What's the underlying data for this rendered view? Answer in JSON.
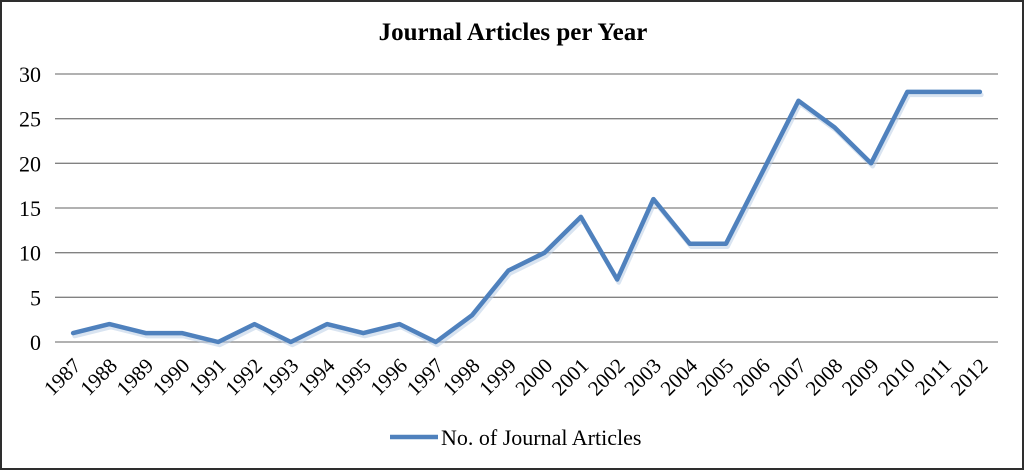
{
  "window": {
    "background_color": "#ffffff",
    "border_color": "#2e2e2e"
  },
  "chart_data": {
    "type": "line",
    "title": "Journal Articles per Year",
    "categories": [
      "1987",
      "1988",
      "1989",
      "1990",
      "1991",
      "1992",
      "1993",
      "1994",
      "1995",
      "1996",
      "1997",
      "1998",
      "1999",
      "2000",
      "2001",
      "2002",
      "2003",
      "2004",
      "2005",
      "2006",
      "2007",
      "2008",
      "2009",
      "2010",
      "2011",
      "2012"
    ],
    "series": [
      {
        "name": "No. of Journal Articles",
        "values": [
          1,
          2,
          1,
          1,
          0,
          2,
          0,
          2,
          1,
          2,
          0,
          3,
          8,
          10,
          14,
          7,
          16,
          11,
          11,
          19,
          27,
          24,
          20,
          28,
          28,
          28
        ],
        "color": "#4F81BD",
        "shadow_color": "#b9cde5"
      }
    ],
    "xlabel": "",
    "ylabel": "",
    "ylim": [
      0,
      30
    ],
    "yticks": [
      0,
      5,
      10,
      15,
      20,
      25,
      30
    ],
    "grid": "horizontal",
    "gridline_color": "#828282",
    "text_color": "#000000",
    "legend_position": "bottom-center",
    "x_tick_rotation_deg": -45
  }
}
